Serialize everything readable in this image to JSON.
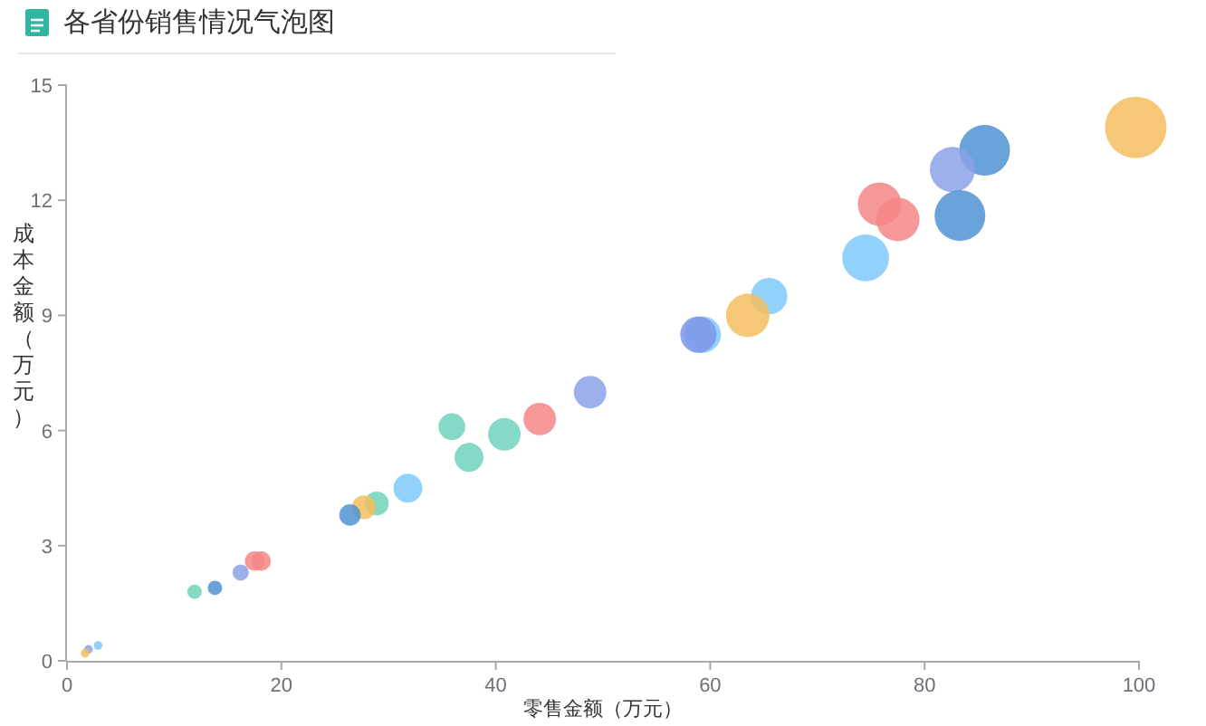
{
  "chart_data": {
    "type": "bubble",
    "title": "各省份销售情况气泡图",
    "xlabel": "零售金额（万元）",
    "ylabel": "成本金额（万元）",
    "x": [
      99.7,
      85.6,
      82.6,
      75.8,
      77.5,
      83.3,
      74.5,
      65.5,
      63.5,
      59.3,
      58.9,
      48.8,
      44.1,
      40.8,
      35.9,
      37.5,
      31.8,
      28.9,
      27.7,
      26.4,
      17.5,
      18.1,
      16.2,
      13.8,
      11.9,
      2.9,
      2.0,
      1.7
    ],
    "values": [
      13.9,
      13.3,
      12.8,
      11.9,
      11.5,
      11.6,
      10.5,
      9.5,
      9.0,
      8.5,
      8.5,
      7.0,
      6.3,
      5.9,
      6.1,
      5.3,
      4.5,
      4.1,
      4.0,
      3.8,
      2.6,
      2.6,
      2.3,
      1.9,
      1.8,
      0.4,
      0.3,
      0.2
    ],
    "sizes": [
      1,
      0.68,
      0.54,
      0.5,
      0.5,
      0.68,
      0.58,
      0.35,
      0.5,
      0.35,
      0.35,
      0.28,
      0.28,
      0.28,
      0.19,
      0.22,
      0.22,
      0.15,
      0.15,
      0.12,
      0.1,
      0.1,
      0.07,
      0.055,
      0.055,
      0.02,
      0.02,
      0.02
    ],
    "colors": [
      "#f5bd5e",
      "#4f93d2",
      "#8ba2e8",
      "#f48686",
      "#f48686",
      "#4f93d2",
      "#7fc9fc",
      "#7fc9fc",
      "#f5bd5e",
      "#7fc9fc",
      "#7d97e8",
      "#8ba2e8",
      "#f48686",
      "#6fd3bb",
      "#6fd3bb",
      "#6fd3bb",
      "#7fc9fc",
      "#6fd3bb",
      "#f5bd5e",
      "#4f93d2",
      "#f48686",
      "#f48686",
      "#8ba2e8",
      "#4f93d2",
      "#6fd3bb",
      "#7fc9fc",
      "#8ba2e8",
      "#f5bd5e"
    ],
    "xlim": [
      0,
      100
    ],
    "xticks": [
      0,
      20,
      40,
      60,
      80,
      100
    ],
    "ylim": [
      0,
      15
    ],
    "yticks": [
      0,
      3,
      6,
      9,
      12,
      15
    ],
    "grid": false
  }
}
